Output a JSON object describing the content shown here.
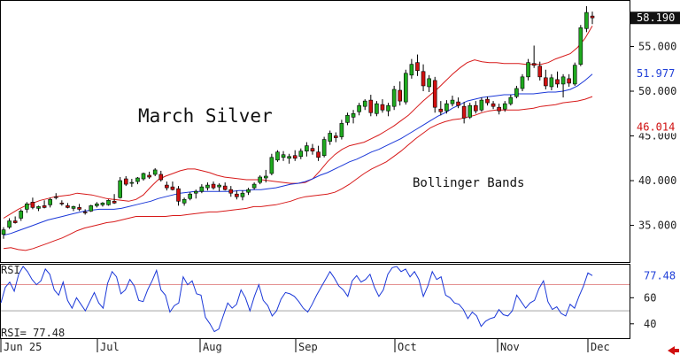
{
  "chart_data": [
    {
      "type": "candlestick",
      "title": "March Silver",
      "annotation": "Bollinger Bands",
      "x_labels": [
        "Jun 25",
        "Jul",
        "Aug",
        "Sep",
        "Oct",
        "Nov",
        "Dec"
      ],
      "y_ticks": [
        "35.000",
        "40.000",
        "45.000",
        "50.000",
        "55.000"
      ],
      "ylim": [
        30.9,
        59.6
      ],
      "price_labels": [
        {
          "text": "58.190",
          "value": 58.19,
          "color": "#ffffff",
          "bg": "#111111"
        },
        {
          "text": "51.977",
          "value": 51.977,
          "color": "#1f3fd8",
          "bg": "#ffffff"
        },
        {
          "text": "46.014",
          "value": 46.014,
          "color": "#d01010",
          "bg": "#ffffff"
        }
      ],
      "bands": {
        "upper": [
          35.8,
          36.3,
          36.8,
          37.2,
          37.5,
          37.8,
          38.0,
          38.2,
          38.3,
          38.4,
          38.6,
          38.5,
          38.4,
          38.2,
          38.0,
          37.9,
          37.8,
          37.7,
          37.9,
          38.4,
          39.3,
          40.1,
          40.5,
          40.8,
          41.1,
          41.3,
          41.3,
          41.1,
          40.9,
          40.6,
          40.4,
          40.3,
          40.2,
          40.1,
          40.1,
          40.1,
          40.0,
          39.9,
          39.8,
          39.7,
          39.7,
          39.8,
          40.2,
          41.1,
          42.1,
          42.9,
          43.5,
          43.9,
          44.1,
          44.3,
          44.7,
          45.1,
          45.6,
          46.1,
          46.7,
          47.3,
          48.1,
          48.9,
          49.6,
          50.3,
          51.1,
          51.9,
          52.6,
          53.2,
          53.5,
          53.3,
          53.2,
          53.2,
          53.1,
          53.1,
          53.1,
          53.0,
          53.0,
          53.0,
          53.2,
          53.6,
          53.9,
          54.2,
          54.9,
          55.9,
          57.3
        ],
        "middle": [
          33.9,
          34.1,
          34.4,
          34.7,
          35.0,
          35.3,
          35.6,
          35.8,
          36.0,
          36.2,
          36.4,
          36.6,
          36.7,
          36.8,
          36.8,
          36.8,
          36.9,
          37.1,
          37.3,
          37.5,
          37.7,
          38.0,
          38.2,
          38.4,
          38.6,
          38.7,
          38.8,
          38.8,
          38.8,
          38.8,
          38.8,
          38.8,
          38.9,
          38.9,
          39.0,
          39.0,
          39.1,
          39.2,
          39.4,
          39.6,
          39.7,
          39.9,
          40.2,
          40.6,
          40.9,
          41.3,
          41.7,
          42.1,
          42.4,
          42.8,
          43.2,
          43.5,
          43.9,
          44.3,
          44.7,
          45.2,
          45.7,
          46.2,
          46.7,
          47.2,
          47.6,
          48.1,
          48.5,
          48.9,
          49.1,
          49.3,
          49.4,
          49.5,
          49.6,
          49.6,
          49.7,
          49.7,
          49.7,
          49.8,
          49.9,
          49.9,
          50.0,
          50.2,
          50.6,
          51.2,
          51.9
        ],
        "lower": [
          32.4,
          32.5,
          32.3,
          32.2,
          32.4,
          32.7,
          33.0,
          33.3,
          33.6,
          34.0,
          34.4,
          34.7,
          34.9,
          35.1,
          35.3,
          35.4,
          35.6,
          35.8,
          36.0,
          36.0,
          36.0,
          36.0,
          36.0,
          36.1,
          36.1,
          36.2,
          36.3,
          36.4,
          36.5,
          36.5,
          36.6,
          36.7,
          36.8,
          36.9,
          37.1,
          37.1,
          37.2,
          37.3,
          37.5,
          37.7,
          38.0,
          38.2,
          38.3,
          38.4,
          38.5,
          38.7,
          39.1,
          39.6,
          40.2,
          40.8,
          41.3,
          41.7,
          42.1,
          42.7,
          43.3,
          44.0,
          44.7,
          45.3,
          45.9,
          46.3,
          46.6,
          46.8,
          46.9,
          47.1,
          47.3,
          47.6,
          47.8,
          47.9,
          47.9,
          47.9,
          47.9,
          48.0,
          48.1,
          48.3,
          48.4,
          48.5,
          48.7,
          48.8,
          48.9,
          49.1,
          49.4
        ]
      },
      "candles": [
        {
          "o": 34.0,
          "h": 34.8,
          "l": 33.5,
          "c": 34.5
        },
        {
          "o": 34.8,
          "h": 35.8,
          "l": 34.6,
          "c": 35.5
        },
        {
          "o": 35.5,
          "h": 36.0,
          "l": 35.2,
          "c": 35.3
        },
        {
          "o": 35.8,
          "h": 36.8,
          "l": 35.5,
          "c": 36.6
        },
        {
          "o": 36.8,
          "h": 37.6,
          "l": 36.4,
          "c": 37.4
        },
        {
          "o": 37.6,
          "h": 38.1,
          "l": 36.8,
          "c": 37.0
        },
        {
          "o": 36.9,
          "h": 37.2,
          "l": 36.6,
          "c": 37.1
        },
        {
          "o": 37.2,
          "h": 37.8,
          "l": 36.9,
          "c": 37.0
        },
        {
          "o": 37.3,
          "h": 38.1,
          "l": 37.0,
          "c": 37.9
        },
        {
          "o": 38.2,
          "h": 38.6,
          "l": 37.9,
          "c": 38.1
        },
        {
          "o": 37.5,
          "h": 37.8,
          "l": 37.2,
          "c": 37.4
        },
        {
          "o": 37.2,
          "h": 37.5,
          "l": 36.9,
          "c": 37.0
        },
        {
          "o": 36.9,
          "h": 37.2,
          "l": 36.6,
          "c": 37.1
        },
        {
          "o": 37.0,
          "h": 37.4,
          "l": 36.6,
          "c": 36.8
        },
        {
          "o": 36.5,
          "h": 36.8,
          "l": 36.2,
          "c": 36.4
        },
        {
          "o": 36.6,
          "h": 37.3,
          "l": 36.5,
          "c": 37.2
        },
        {
          "o": 37.2,
          "h": 37.6,
          "l": 37.0,
          "c": 37.4
        },
        {
          "o": 37.3,
          "h": 37.6,
          "l": 37.1,
          "c": 37.5
        },
        {
          "o": 37.3,
          "h": 37.9,
          "l": 37.2,
          "c": 37.8
        },
        {
          "o": 37.7,
          "h": 38.5,
          "l": 37.4,
          "c": 37.5
        },
        {
          "o": 38.1,
          "h": 40.4,
          "l": 38.0,
          "c": 40.0
        },
        {
          "o": 40.2,
          "h": 40.5,
          "l": 39.4,
          "c": 39.6
        },
        {
          "o": 39.7,
          "h": 40.2,
          "l": 39.3,
          "c": 39.8
        },
        {
          "o": 39.9,
          "h": 40.4,
          "l": 39.6,
          "c": 40.3
        },
        {
          "o": 40.2,
          "h": 40.9,
          "l": 40.0,
          "c": 40.8
        },
        {
          "o": 40.6,
          "h": 41.0,
          "l": 40.2,
          "c": 40.4
        },
        {
          "o": 40.7,
          "h": 41.4,
          "l": 40.5,
          "c": 41.2
        },
        {
          "o": 40.7,
          "h": 41.1,
          "l": 39.9,
          "c": 40.1
        },
        {
          "o": 39.5,
          "h": 39.9,
          "l": 38.9,
          "c": 39.2
        },
        {
          "o": 39.3,
          "h": 39.9,
          "l": 38.9,
          "c": 39.0
        },
        {
          "o": 39.1,
          "h": 39.4,
          "l": 37.2,
          "c": 37.7
        },
        {
          "o": 37.5,
          "h": 38.1,
          "l": 37.2,
          "c": 37.9
        },
        {
          "o": 38.0,
          "h": 38.7,
          "l": 37.8,
          "c": 38.5
        },
        {
          "o": 38.6,
          "h": 39.0,
          "l": 38.0,
          "c": 38.8
        },
        {
          "o": 38.8,
          "h": 39.6,
          "l": 38.6,
          "c": 39.3
        },
        {
          "o": 39.2,
          "h": 39.8,
          "l": 38.9,
          "c": 39.5
        },
        {
          "o": 39.6,
          "h": 39.9,
          "l": 39.0,
          "c": 39.2
        },
        {
          "o": 39.3,
          "h": 39.7,
          "l": 38.8,
          "c": 39.5
        },
        {
          "o": 39.4,
          "h": 39.8,
          "l": 38.9,
          "c": 39.0
        },
        {
          "o": 39.0,
          "h": 39.4,
          "l": 38.2,
          "c": 38.6
        },
        {
          "o": 38.5,
          "h": 38.9,
          "l": 37.9,
          "c": 38.2
        },
        {
          "o": 38.2,
          "h": 38.9,
          "l": 37.8,
          "c": 38.6
        },
        {
          "o": 38.7,
          "h": 39.2,
          "l": 38.4,
          "c": 39.0
        },
        {
          "o": 39.2,
          "h": 39.8,
          "l": 39.0,
          "c": 39.6
        },
        {
          "o": 39.8,
          "h": 40.6,
          "l": 39.6,
          "c": 40.4
        },
        {
          "o": 40.3,
          "h": 41.2,
          "l": 39.8,
          "c": 40.5
        },
        {
          "o": 40.8,
          "h": 43.0,
          "l": 40.6,
          "c": 42.6
        },
        {
          "o": 42.3,
          "h": 43.4,
          "l": 42.1,
          "c": 43.2
        },
        {
          "o": 42.6,
          "h": 43.3,
          "l": 42.2,
          "c": 42.9
        },
        {
          "o": 42.5,
          "h": 43.0,
          "l": 41.9,
          "c": 42.7
        },
        {
          "o": 42.8,
          "h": 43.4,
          "l": 42.2,
          "c": 42.5
        },
        {
          "o": 42.7,
          "h": 43.6,
          "l": 42.4,
          "c": 43.3
        },
        {
          "o": 43.3,
          "h": 44.3,
          "l": 42.7,
          "c": 43.9
        },
        {
          "o": 43.6,
          "h": 44.1,
          "l": 42.9,
          "c": 43.3
        },
        {
          "o": 43.2,
          "h": 43.9,
          "l": 42.2,
          "c": 42.6
        },
        {
          "o": 42.8,
          "h": 44.9,
          "l": 42.6,
          "c": 44.6
        },
        {
          "o": 44.4,
          "h": 45.6,
          "l": 44.0,
          "c": 45.3
        },
        {
          "o": 45.0,
          "h": 45.4,
          "l": 44.3,
          "c": 44.8
        },
        {
          "o": 44.9,
          "h": 46.8,
          "l": 44.6,
          "c": 46.4
        },
        {
          "o": 46.5,
          "h": 47.6,
          "l": 46.2,
          "c": 47.3
        },
        {
          "o": 47.1,
          "h": 47.9,
          "l": 46.4,
          "c": 47.5
        },
        {
          "o": 47.7,
          "h": 48.7,
          "l": 47.3,
          "c": 48.4
        },
        {
          "o": 48.3,
          "h": 49.1,
          "l": 47.9,
          "c": 48.9
        },
        {
          "o": 49.0,
          "h": 49.6,
          "l": 47.2,
          "c": 47.6
        },
        {
          "o": 47.5,
          "h": 48.9,
          "l": 47.2,
          "c": 48.6
        },
        {
          "o": 48.5,
          "h": 49.1,
          "l": 47.6,
          "c": 47.9
        },
        {
          "o": 47.8,
          "h": 48.7,
          "l": 47.2,
          "c": 48.4
        },
        {
          "o": 48.3,
          "h": 50.6,
          "l": 47.9,
          "c": 50.2
        },
        {
          "o": 50.1,
          "h": 51.1,
          "l": 48.4,
          "c": 48.9
        },
        {
          "o": 48.8,
          "h": 52.4,
          "l": 48.5,
          "c": 52.0
        },
        {
          "o": 51.8,
          "h": 53.6,
          "l": 51.4,
          "c": 53.0
        },
        {
          "o": 53.2,
          "h": 54.1,
          "l": 51.7,
          "c": 52.3
        },
        {
          "o": 52.2,
          "h": 53.0,
          "l": 50.0,
          "c": 50.6
        },
        {
          "o": 50.5,
          "h": 51.8,
          "l": 49.9,
          "c": 51.4
        },
        {
          "o": 51.2,
          "h": 51.6,
          "l": 47.6,
          "c": 48.2
        },
        {
          "o": 48.0,
          "h": 48.9,
          "l": 47.3,
          "c": 47.7
        },
        {
          "o": 47.8,
          "h": 49.0,
          "l": 47.5,
          "c": 48.6
        },
        {
          "o": 48.6,
          "h": 49.5,
          "l": 48.3,
          "c": 49.0
        },
        {
          "o": 48.8,
          "h": 49.3,
          "l": 48.1,
          "c": 48.4
        },
        {
          "o": 48.3,
          "h": 48.8,
          "l": 46.4,
          "c": 47.0
        },
        {
          "o": 47.1,
          "h": 48.7,
          "l": 46.9,
          "c": 48.4
        },
        {
          "o": 48.4,
          "h": 48.9,
          "l": 47.5,
          "c": 47.8
        },
        {
          "o": 47.9,
          "h": 49.3,
          "l": 47.7,
          "c": 49.0
        },
        {
          "o": 49.1,
          "h": 49.4,
          "l": 48.4,
          "c": 48.7
        },
        {
          "o": 48.6,
          "h": 48.9,
          "l": 48.0,
          "c": 48.3
        },
        {
          "o": 48.2,
          "h": 48.6,
          "l": 47.4,
          "c": 47.8
        },
        {
          "o": 48.0,
          "h": 48.9,
          "l": 47.7,
          "c": 48.6
        },
        {
          "o": 48.6,
          "h": 49.6,
          "l": 48.4,
          "c": 49.3
        },
        {
          "o": 49.4,
          "h": 50.6,
          "l": 49.2,
          "c": 50.3
        },
        {
          "o": 50.3,
          "h": 51.9,
          "l": 50.0,
          "c": 51.6
        },
        {
          "o": 51.6,
          "h": 53.6,
          "l": 51.2,
          "c": 53.2
        },
        {
          "o": 53.1,
          "h": 55.1,
          "l": 52.6,
          "c": 52.9
        },
        {
          "o": 52.8,
          "h": 53.3,
          "l": 51.2,
          "c": 51.6
        },
        {
          "o": 51.5,
          "h": 52.4,
          "l": 50.2,
          "c": 50.6
        },
        {
          "o": 50.5,
          "h": 51.9,
          "l": 50.1,
          "c": 51.5
        },
        {
          "o": 51.3,
          "h": 52.2,
          "l": 50.4,
          "c": 50.8
        },
        {
          "o": 50.8,
          "h": 51.9,
          "l": 49.3,
          "c": 51.6
        },
        {
          "o": 51.4,
          "h": 51.9,
          "l": 50.5,
          "c": 50.9
        },
        {
          "o": 50.8,
          "h": 53.2,
          "l": 50.6,
          "c": 52.9
        },
        {
          "o": 53.0,
          "h": 57.4,
          "l": 52.8,
          "c": 57.1
        },
        {
          "o": 57.0,
          "h": 59.5,
          "l": 56.6,
          "c": 58.8
        },
        {
          "o": 58.4,
          "h": 58.9,
          "l": 57.5,
          "c": 58.2
        }
      ]
    },
    {
      "type": "line",
      "panel_label": "RSI",
      "value_label": "RSI=   77.48",
      "right_label": "77.48",
      "y_ticks": [
        "60",
        "40"
      ],
      "ylim": [
        29,
        86
      ],
      "reference_lines": [
        70,
        50
      ],
      "values": [
        56,
        68,
        72,
        65,
        78,
        84,
        80,
        74,
        70,
        73,
        82,
        78,
        66,
        62,
        72,
        58,
        52,
        60,
        55,
        50,
        57,
        64,
        56,
        52,
        71,
        80,
        76,
        63,
        66,
        74,
        69,
        58,
        57,
        66,
        73,
        81,
        66,
        62,
        49,
        54,
        56,
        76,
        70,
        73,
        63,
        62,
        45,
        40,
        34,
        36,
        46,
        56,
        52,
        55,
        66,
        60,
        50,
        61,
        70,
        58,
        54,
        46,
        50,
        59,
        64,
        63,
        61,
        57,
        52,
        49,
        55,
        62,
        68,
        74,
        80,
        75,
        69,
        66,
        61,
        73,
        77,
        72,
        74,
        78,
        68,
        61,
        66,
        78,
        83,
        84,
        80,
        82,
        76,
        80,
        74,
        61,
        69,
        80,
        74,
        76,
        62,
        60,
        56,
        55,
        51,
        44,
        49,
        46,
        38,
        42,
        44,
        45,
        51,
        47,
        46,
        50,
        62,
        57,
        52,
        56,
        58,
        67,
        73,
        57,
        51,
        53,
        48,
        46,
        55,
        52,
        61,
        69,
        79,
        77
      ]
    }
  ]
}
